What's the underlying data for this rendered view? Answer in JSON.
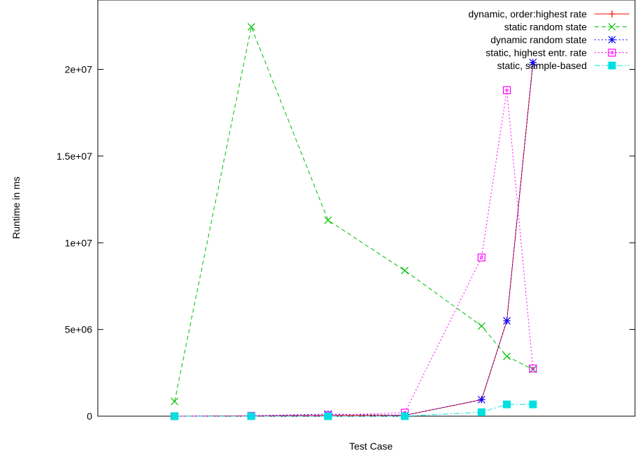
{
  "chart_data": {
    "type": "line",
    "xlabel": "Test Case",
    "ylabel": "Runtime in ms",
    "xlim": [
      0,
      7
    ],
    "ylim": [
      0,
      24000000
    ],
    "yticks": [
      0,
      5000000,
      10000000,
      15000000,
      20000000
    ],
    "ytick_labels": [
      "0",
      "5e+06",
      "1e+07",
      "1.5e+07",
      "2e+07"
    ],
    "grid": false,
    "legend_position": "top-right",
    "series": [
      {
        "name": "dynamic, order:highest rate",
        "color": "#ff0000",
        "dash": "solid",
        "marker": "plus",
        "x": [
          1,
          2,
          3,
          4,
          5,
          5.33,
          5.67
        ],
        "y": [
          0,
          20000,
          50000,
          50000,
          950000,
          5500000,
          20400000
        ]
      },
      {
        "name": "static random state",
        "color": "#00c000",
        "dash": "dashed",
        "marker": "x",
        "x": [
          1,
          2,
          3,
          4,
          5,
          5.33,
          5.67
        ],
        "y": [
          850000,
          22450000,
          11300000,
          8400000,
          5200000,
          3450000,
          2700000
        ]
      },
      {
        "name": "dynamic random state",
        "color": "#0000ff",
        "dash": "dotted",
        "marker": "star",
        "x": [
          1,
          2,
          3,
          4,
          5,
          5.33,
          5.67
        ],
        "y": [
          0,
          30000,
          120000,
          50000,
          950000,
          5500000,
          20400000
        ]
      },
      {
        "name": "static, highest entr. rate",
        "color": "#ff00ff",
        "dash": "dotted",
        "marker": "open-square",
        "x": [
          1,
          2,
          3,
          4,
          5,
          5.33,
          5.67
        ],
        "y": [
          0,
          20000,
          50000,
          200000,
          9150000,
          18800000,
          2750000
        ]
      },
      {
        "name": "static, sample-based",
        "color": "#00e0e0",
        "dash": "dashdot",
        "marker": "filled-square",
        "x": [
          1,
          2,
          3,
          4,
          5,
          5.33,
          5.67
        ],
        "y": [
          0,
          0,
          0,
          0,
          230000,
          680000,
          680000
        ]
      }
    ]
  }
}
